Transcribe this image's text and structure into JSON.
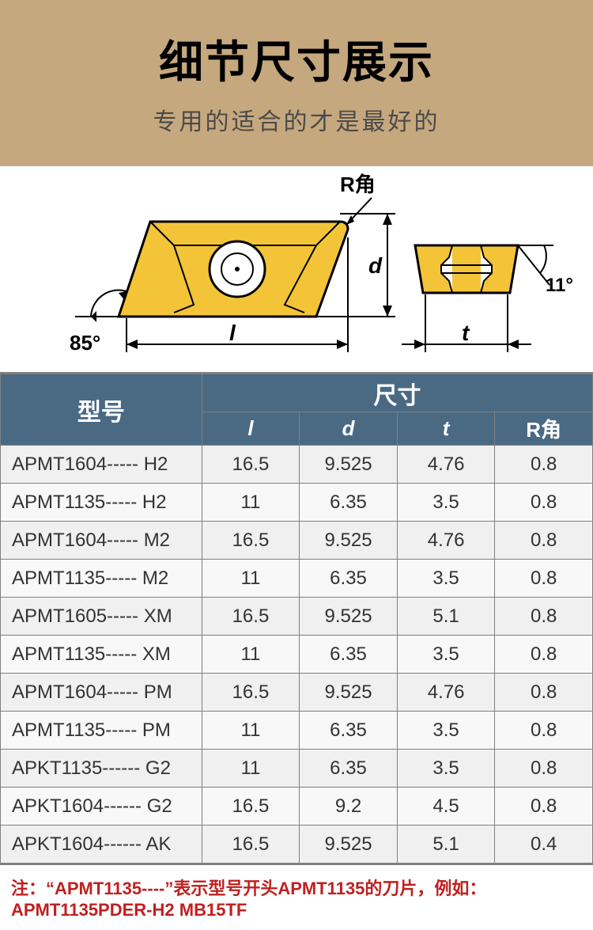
{
  "header": {
    "title": "细节尺寸展示",
    "subtitle": "专用的适合的才是最好的",
    "bg_color": "#c6a87e",
    "title_color": "#000000",
    "subtitle_color": "#4a4a4a"
  },
  "diagram": {
    "labels": {
      "r_angle": "R角",
      "d": "d",
      "l": "l",
      "t": "t",
      "angle_left": "85°",
      "angle_right": "11°"
    },
    "insert_fill": "#f3c438",
    "insert_stroke": "#000000",
    "background": "#ffffff"
  },
  "table": {
    "header_bg": "#4a6a84",
    "header_fg": "#ffffff",
    "border_color": "#7f7f7f",
    "row_bg_odd": "#f0f0f0",
    "row_bg_even": "#f8f8f8",
    "columns": {
      "model": "型号",
      "dimensions": "尺寸",
      "l": "l",
      "d": "d",
      "t": "t",
      "r": "R角"
    },
    "rows": [
      {
        "model": "APMT1604----- H2",
        "l": "16.5",
        "d": "9.525",
        "t": "4.76",
        "r": "0.8"
      },
      {
        "model": "APMT1135----- H2",
        "l": "11",
        "d": "6.35",
        "t": "3.5",
        "r": "0.8"
      },
      {
        "model": "APMT1604----- M2",
        "l": "16.5",
        "d": "9.525",
        "t": "4.76",
        "r": "0.8"
      },
      {
        "model": "APMT1135----- M2",
        "l": "11",
        "d": "6.35",
        "t": "3.5",
        "r": "0.8"
      },
      {
        "model": "APMT1605----- XM",
        "l": "16.5",
        "d": "9.525",
        "t": "5.1",
        "r": "0.8"
      },
      {
        "model": "APMT1135----- XM",
        "l": "11",
        "d": "6.35",
        "t": "3.5",
        "r": "0.8"
      },
      {
        "model": "APMT1604----- PM",
        "l": "16.5",
        "d": "9.525",
        "t": "4.76",
        "r": "0.8"
      },
      {
        "model": "APMT1135----- PM",
        "l": "11",
        "d": "6.35",
        "t": "3.5",
        "r": "0.8"
      },
      {
        "model": "APKT1135------ G2",
        "l": "11",
        "d": "6.35",
        "t": "3.5",
        "r": "0.8"
      },
      {
        "model": "APKT1604------ G2",
        "l": "16.5",
        "d": "9.2",
        "t": "4.5",
        "r": "0.8"
      },
      {
        "model": "APKT1604------ AK",
        "l": "16.5",
        "d": "9.525",
        "t": "5.1",
        "r": "0.4"
      }
    ]
  },
  "note": "注：“APMT1135----”表示型号开头APMT1135的刀片，例如：APMT1135PDER-H2 MB15TF"
}
